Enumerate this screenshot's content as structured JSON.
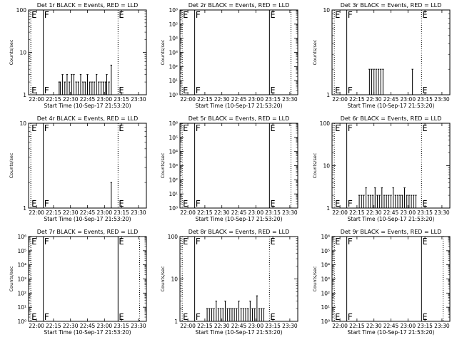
{
  "xlabel": "Start Time (10-Sep-17 21:53:20)",
  "ylabel": "Counts/sec",
  "colors": {
    "events": "#000000",
    "lld": "#ff0000"
  },
  "x_ticks": [
    "22:00",
    "22:15",
    "22:30",
    "22:45",
    "23:00",
    "23:15",
    "23:30"
  ],
  "chart_data": [
    {
      "type": "line",
      "title": "Det 1r BLACK = Events, RED = LLD",
      "ylim": [
        1,
        100
      ],
      "yscale": "log",
      "y_ticks": [
        "1",
        "10",
        "100"
      ],
      "markers": [
        {
          "label": "E",
          "time": "21:55",
          "style": "dotted"
        },
        {
          "label": "F",
          "time": "22:06",
          "style": "solid"
        },
        {
          "label": "E",
          "time": "23:12",
          "style": "dotted"
        }
      ],
      "series": [
        {
          "x": [
            "22:20",
            "22:21",
            "22:23",
            "22:25",
            "22:27",
            "22:29",
            "22:31",
            "22:33",
            "22:35",
            "22:37",
            "22:39",
            "22:41",
            "22:43",
            "22:45",
            "22:47",
            "22:49",
            "22:51",
            "22:53",
            "22:55",
            "22:57",
            "22:59",
            "23:01",
            "23:02",
            "23:04",
            "23:06"
          ],
          "values": [
            2,
            2,
            3,
            2,
            3,
            2,
            3,
            3,
            2,
            2,
            3,
            2,
            2,
            3,
            2,
            2,
            2,
            3,
            2,
            2,
            2,
            2,
            3,
            2,
            5
          ]
        }
      ]
    },
    {
      "type": "line",
      "title": "Det 2r BLACK = Events, RED = LLD",
      "ylim": [
        1,
        1000000
      ],
      "yscale": "log",
      "y_ticks": [
        "10⁰",
        "10¹",
        "10²",
        "10³",
        "10⁴",
        "10⁵",
        "10⁶"
      ],
      "markers": [
        {
          "label": "E",
          "time": "21:55",
          "style": "dotted"
        },
        {
          "label": "F",
          "time": "22:06",
          "style": "solid"
        },
        {
          "label": "E",
          "time": "23:12",
          "style": "solid"
        },
        {
          "label": "",
          "time": "23:31",
          "style": "dotted"
        }
      ],
      "series": []
    },
    {
      "type": "line",
      "title": "Det 3r BLACK = Events, RED = LLD",
      "ylim": [
        1,
        10
      ],
      "yscale": "log",
      "y_ticks": [
        "1",
        "10"
      ],
      "markers": [
        {
          "label": "E",
          "time": "21:55",
          "style": "dotted"
        },
        {
          "label": "F",
          "time": "22:06",
          "style": "solid"
        },
        {
          "label": "E",
          "time": "23:12",
          "style": "dotted"
        }
      ],
      "series": [
        {
          "x": [
            "22:26",
            "22:28",
            "22:30",
            "22:32",
            "22:34",
            "22:36",
            "22:38",
            "23:04"
          ],
          "values": [
            2,
            2,
            2,
            2,
            2,
            2,
            2,
            2
          ]
        }
      ]
    },
    {
      "type": "line",
      "title": "Det 4r BLACK = Events, RED = LLD",
      "ylim": [
        1,
        10
      ],
      "yscale": "log",
      "y_ticks": [
        "1",
        "10"
      ],
      "markers": [
        {
          "label": "E",
          "time": "21:55",
          "style": "dotted"
        },
        {
          "label": "F",
          "time": "22:06",
          "style": "solid"
        },
        {
          "label": "E",
          "time": "23:12",
          "style": "dotted"
        }
      ],
      "series": [
        {
          "x": [
            "23:06"
          ],
          "values": [
            2
          ]
        }
      ]
    },
    {
      "type": "line",
      "title": "Det 5r BLACK = Events, RED = LLD",
      "ylim": [
        1,
        1000000
      ],
      "yscale": "log",
      "y_ticks": [
        "10⁰",
        "10¹",
        "10²",
        "10³",
        "10⁴",
        "10⁵",
        "10⁶"
      ],
      "markers": [
        {
          "label": "E",
          "time": "21:55",
          "style": "dotted"
        },
        {
          "label": "F",
          "time": "22:06",
          "style": "solid"
        },
        {
          "label": "E",
          "time": "23:12",
          "style": "solid"
        },
        {
          "label": "",
          "time": "23:31",
          "style": "dotted"
        }
      ],
      "series": []
    },
    {
      "type": "line",
      "title": "Det 6r BLACK = Events, RED = LLD",
      "ylim": [
        1,
        100
      ],
      "yscale": "log",
      "y_ticks": [
        "1",
        "10",
        "100"
      ],
      "markers": [
        {
          "label": "E",
          "time": "21:55",
          "style": "dotted"
        },
        {
          "label": "F",
          "time": "22:06",
          "style": "solid"
        },
        {
          "label": "E",
          "time": "23:12",
          "style": "dotted"
        }
      ],
      "series": [
        {
          "x": [
            "22:17",
            "22:19",
            "22:21",
            "22:23",
            "22:25",
            "22:27",
            "22:29",
            "22:31",
            "22:33",
            "22:35",
            "22:37",
            "22:39",
            "22:41",
            "22:43",
            "22:45",
            "22:47",
            "22:49",
            "22:51",
            "22:53",
            "22:55",
            "22:57",
            "22:59",
            "23:01",
            "23:03",
            "23:05",
            "23:07"
          ],
          "values": [
            2,
            2,
            2,
            3,
            2,
            2,
            2,
            3,
            2,
            2,
            3,
            2,
            2,
            2,
            2,
            3,
            2,
            2,
            2,
            2,
            3,
            2,
            2,
            2,
            2,
            2
          ]
        }
      ]
    },
    {
      "type": "line",
      "title": "Det 7r BLACK = Events, RED = LLD",
      "ylim": [
        1,
        1000000
      ],
      "yscale": "log",
      "y_ticks": [
        "10⁰",
        "10¹",
        "10²",
        "10³",
        "10⁴",
        "10⁵",
        "10⁶"
      ],
      "markers": [
        {
          "label": "E",
          "time": "21:55",
          "style": "dotted"
        },
        {
          "label": "F",
          "time": "22:06",
          "style": "solid"
        },
        {
          "label": "E",
          "time": "23:12",
          "style": "solid"
        },
        {
          "label": "",
          "time": "23:31",
          "style": "dotted"
        }
      ],
      "series": []
    },
    {
      "type": "line",
      "title": "Det 8r BLACK = Events, RED = LLD",
      "ylim": [
        1,
        100
      ],
      "yscale": "log",
      "y_ticks": [
        "1",
        "10",
        "100"
      ],
      "markers": [
        {
          "label": "E",
          "time": "21:55",
          "style": "dotted"
        },
        {
          "label": "F",
          "time": "22:06",
          "style": "solid"
        },
        {
          "label": "E",
          "time": "23:12",
          "style": "dotted"
        }
      ],
      "series": [
        {
          "x": [
            "22:17",
            "22:19",
            "22:21",
            "22:23",
            "22:25",
            "22:27",
            "22:29",
            "22:31",
            "22:33",
            "22:35",
            "22:37",
            "22:39",
            "22:41",
            "22:43",
            "22:45",
            "22:47",
            "22:49",
            "22:51",
            "22:53",
            "22:55",
            "22:57",
            "22:59",
            "23:01",
            "23:03",
            "23:05",
            "23:07"
          ],
          "values": [
            2,
            2,
            2,
            2,
            3,
            2,
            2,
            2,
            3,
            2,
            2,
            2,
            2,
            2,
            3,
            2,
            2,
            2,
            2,
            3,
            2,
            2,
            4,
            2,
            2,
            2
          ]
        }
      ]
    },
    {
      "type": "line",
      "title": "Det 9r BLACK = Events, RED = LLD",
      "ylim": [
        1,
        1000000
      ],
      "yscale": "log",
      "y_ticks": [
        "10⁰",
        "10¹",
        "10²",
        "10³",
        "10⁴",
        "10⁵",
        "10⁶"
      ],
      "markers": [
        {
          "label": "E",
          "time": "21:55",
          "style": "dotted"
        },
        {
          "label": "F",
          "time": "22:06",
          "style": "solid"
        },
        {
          "label": "E",
          "time": "23:12",
          "style": "solid"
        },
        {
          "label": "",
          "time": "23:31",
          "style": "dotted"
        }
      ],
      "series": []
    }
  ]
}
